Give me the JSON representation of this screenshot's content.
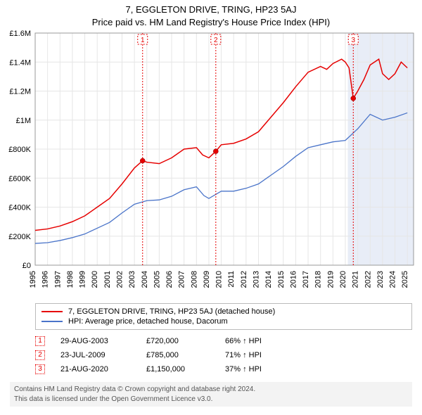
{
  "title": "7, EGGLETON DRIVE, TRING, HP23 5AJ",
  "subtitle": "Price paid vs. HM Land Registry's House Price Index (HPI)",
  "chart": {
    "type": "line",
    "background_color": "#ffffff",
    "grid_color": "#e6e6e6",
    "x": {
      "min": 1995,
      "max": 2025.5,
      "ticks": [
        1995,
        1996,
        1997,
        1998,
        1999,
        2000,
        2001,
        2002,
        2003,
        2004,
        2005,
        2006,
        2007,
        2008,
        2009,
        2010,
        2011,
        2012,
        2013,
        2014,
        2015,
        2016,
        2017,
        2018,
        2019,
        2020,
        2021,
        2022,
        2023,
        2024,
        2025
      ]
    },
    "y": {
      "min": 0,
      "max": 1600000,
      "ticks": [
        0,
        200000,
        400000,
        600000,
        800000,
        1000000,
        1200000,
        1400000,
        1600000
      ],
      "tick_labels": [
        "£0",
        "£200K",
        "£400K",
        "£600K",
        "£800K",
        "£1M",
        "£1.2M",
        "£1.4M",
        "£1.6M"
      ]
    },
    "highlight_band_color": "#e8edf7",
    "highlight_band": {
      "from": 2020.2,
      "to": 2025.5
    },
    "series": [
      {
        "name": "property",
        "label": "7, EGGLETON DRIVE, TRING, HP23 5AJ (detached house)",
        "color": "#e60000",
        "line_width": 1.5,
        "points": [
          [
            1995,
            240000
          ],
          [
            1996,
            250000
          ],
          [
            1997,
            270000
          ],
          [
            1998,
            300000
          ],
          [
            1999,
            340000
          ],
          [
            2000,
            400000
          ],
          [
            2001,
            460000
          ],
          [
            2002,
            560000
          ],
          [
            2003,
            670000
          ],
          [
            2003.66,
            720000
          ],
          [
            2004,
            710000
          ],
          [
            2005,
            700000
          ],
          [
            2006,
            740000
          ],
          [
            2007,
            800000
          ],
          [
            2008,
            810000
          ],
          [
            2008.5,
            760000
          ],
          [
            2009,
            740000
          ],
          [
            2009.56,
            785000
          ],
          [
            2010,
            830000
          ],
          [
            2011,
            840000
          ],
          [
            2012,
            870000
          ],
          [
            2013,
            920000
          ],
          [
            2014,
            1020000
          ],
          [
            2015,
            1120000
          ],
          [
            2016,
            1230000
          ],
          [
            2017,
            1330000
          ],
          [
            2018,
            1370000
          ],
          [
            2018.5,
            1350000
          ],
          [
            2019,
            1390000
          ],
          [
            2019.7,
            1420000
          ],
          [
            2020,
            1400000
          ],
          [
            2020.3,
            1360000
          ],
          [
            2020.64,
            1150000
          ],
          [
            2021,
            1200000
          ],
          [
            2021.5,
            1280000
          ],
          [
            2022,
            1380000
          ],
          [
            2022.7,
            1420000
          ],
          [
            2023,
            1320000
          ],
          [
            2023.5,
            1280000
          ],
          [
            2024,
            1320000
          ],
          [
            2024.5,
            1400000
          ],
          [
            2025,
            1360000
          ]
        ]
      },
      {
        "name": "hpi",
        "label": "HPI: Average price, detached house, Dacorum",
        "color": "#4a74c9",
        "line_width": 1.3,
        "points": [
          [
            1995,
            150000
          ],
          [
            1996,
            155000
          ],
          [
            1997,
            170000
          ],
          [
            1998,
            190000
          ],
          [
            1999,
            215000
          ],
          [
            2000,
            255000
          ],
          [
            2001,
            295000
          ],
          [
            2002,
            360000
          ],
          [
            2003,
            420000
          ],
          [
            2004,
            445000
          ],
          [
            2005,
            450000
          ],
          [
            2006,
            475000
          ],
          [
            2007,
            520000
          ],
          [
            2008,
            540000
          ],
          [
            2008.6,
            480000
          ],
          [
            2009,
            460000
          ],
          [
            2010,
            510000
          ],
          [
            2011,
            510000
          ],
          [
            2012,
            530000
          ],
          [
            2013,
            560000
          ],
          [
            2014,
            620000
          ],
          [
            2015,
            680000
          ],
          [
            2016,
            750000
          ],
          [
            2017,
            810000
          ],
          [
            2018,
            830000
          ],
          [
            2019,
            850000
          ],
          [
            2020,
            860000
          ],
          [
            2021,
            940000
          ],
          [
            2022,
            1040000
          ],
          [
            2023,
            1000000
          ],
          [
            2024,
            1020000
          ],
          [
            2025,
            1050000
          ]
        ]
      }
    ],
    "sale_markers": [
      {
        "n": "1",
        "x": 2003.66,
        "y": 720000
      },
      {
        "n": "2",
        "x": 2009.56,
        "y": 785000
      },
      {
        "n": "3",
        "x": 2020.64,
        "y": 1150000
      }
    ],
    "marker_line_color": "#e60000",
    "marker_dot_fill": "#e60000",
    "marker_dot_radius": 3.5
  },
  "legend": {
    "items": [
      {
        "color": "#e60000",
        "label": "7, EGGLETON DRIVE, TRING, HP23 5AJ (detached house)"
      },
      {
        "color": "#4a74c9",
        "label": "HPI: Average price, detached house, Dacorum"
      }
    ]
  },
  "sales": [
    {
      "n": "1",
      "date": "29-AUG-2003",
      "price": "£720,000",
      "pct": "66% ↑ HPI"
    },
    {
      "n": "2",
      "date": "23-JUL-2009",
      "price": "£785,000",
      "pct": "71% ↑ HPI"
    },
    {
      "n": "3",
      "date": "21-AUG-2020",
      "price": "£1,150,000",
      "pct": "37% ↑ HPI"
    }
  ],
  "footer": {
    "line1": "Contains HM Land Registry data © Crown copyright and database right 2024.",
    "line2": "This data is licensed under the Open Government Licence v3.0."
  }
}
